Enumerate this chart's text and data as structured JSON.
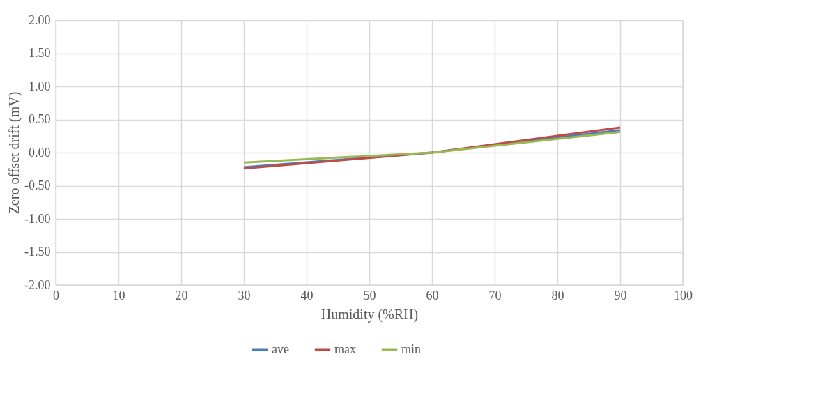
{
  "chart_data": {
    "type": "line",
    "xlabel": "Humidity (%RH)",
    "ylabel": "Zero offset drift (mV)",
    "x": [
      30,
      60,
      90
    ],
    "series": [
      {
        "name": "ave",
        "color": "#4a7ebb",
        "values": [
          -0.22,
          0.0,
          0.34
        ]
      },
      {
        "name": "max",
        "color": "#be4b48",
        "values": [
          -0.24,
          0.0,
          0.38
        ]
      },
      {
        "name": "min",
        "color": "#98b954",
        "values": [
          -0.15,
          0.0,
          0.31
        ]
      }
    ],
    "xlim": [
      0,
      100
    ],
    "xticks": [
      0,
      10,
      20,
      30,
      40,
      50,
      60,
      70,
      80,
      90,
      100
    ],
    "ylim": [
      -2,
      2
    ],
    "yticks": [
      {
        "value": -2,
        "label": "-2.00"
      },
      {
        "value": -1.5,
        "label": "-1.50"
      },
      {
        "value": -1,
        "label": "-1.00"
      },
      {
        "value": -0.5,
        "label": "-0.50"
      },
      {
        "value": 0,
        "label": "0.00"
      },
      {
        "value": 0.5,
        "label": "0.50"
      },
      {
        "value": 1,
        "label": "1.00"
      },
      {
        "value": 1.5,
        "label": "1.50"
      },
      {
        "value": 2,
        "label": "2.00"
      }
    ],
    "grid": true,
    "legend": "bottom",
    "marker": "none",
    "line_style": "solid"
  }
}
